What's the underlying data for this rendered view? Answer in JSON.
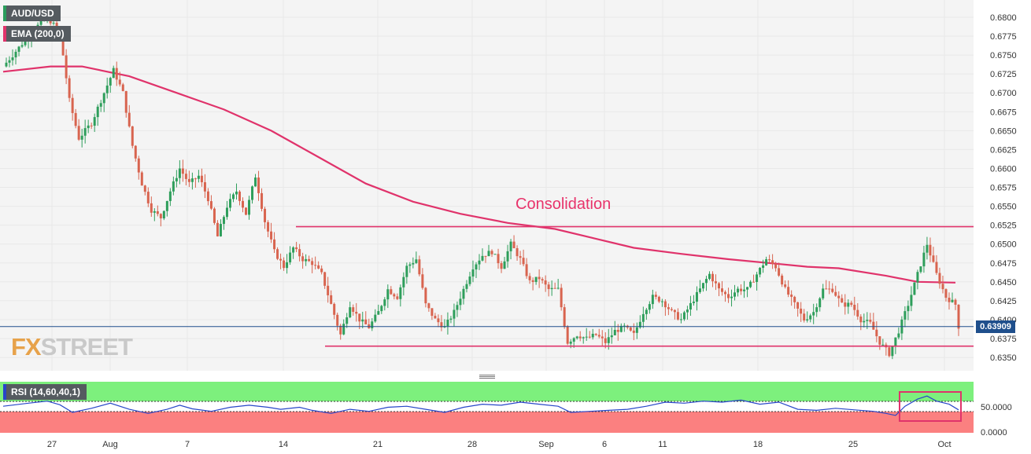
{
  "header": {
    "symbol": "AUD/USD",
    "indicator": "EMA (200,0)"
  },
  "watermark": {
    "x_letters": "FX",
    "rest": "STREET"
  },
  "annotation": {
    "text": "Consolidation",
    "color": "#e8336b"
  },
  "current_price": {
    "label": "0.63909",
    "value": 0.63909
  },
  "rsi_panel": {
    "label": "RSI (14,60,40,1)",
    "axis_ticks": [
      "50.0000",
      "0.0000"
    ],
    "upper_band": 60,
    "lower_band": 40,
    "overbought_color": "#7df07d",
    "oversold_color": "#fb8080"
  },
  "colors": {
    "up_candle": "#2e9e5b",
    "down_candle": "#d8644f",
    "ema": "#e0336b",
    "rsi_line": "#2746c9",
    "price_line": "#1f4f8c",
    "grid": "#e8e8e8"
  },
  "chart_data": [
    {
      "type": "candlestick",
      "title": "AUD/USD",
      "ylim": [
        0.6325,
        0.6825
      ],
      "y_ticks": [
        "0.6800",
        "0.6775",
        "0.6750",
        "0.6725",
        "0.6700",
        "0.6675",
        "0.6650",
        "0.6625",
        "0.6600",
        "0.6575",
        "0.6550",
        "0.6525",
        "0.6500",
        "0.6475",
        "0.6450",
        "0.6425",
        "0.6400",
        "0.6375",
        "0.6350"
      ],
      "x_ticks": [
        "27",
        "Aug",
        "7",
        "14",
        "21",
        "28",
        "Sep",
        "6",
        "11",
        "18",
        "25",
        "Oct"
      ],
      "close_path": [
        [
          0,
          0.6735
        ],
        [
          6,
          0.6765
        ],
        [
          10,
          0.6785
        ],
        [
          14,
          0.68
        ],
        [
          18,
          0.678
        ],
        [
          21,
          0.669
        ],
        [
          24,
          0.664
        ],
        [
          28,
          0.666
        ],
        [
          32,
          0.67
        ],
        [
          35,
          0.673
        ],
        [
          38,
          0.67
        ],
        [
          41,
          0.663
        ],
        [
          44,
          0.658
        ],
        [
          47,
          0.6545
        ],
        [
          50,
          0.6535
        ],
        [
          53,
          0.657
        ],
        [
          56,
          0.66
        ],
        [
          59,
          0.658
        ],
        [
          62,
          0.659
        ],
        [
          65,
          0.656
        ],
        [
          68,
          0.651
        ],
        [
          71,
          0.655
        ],
        [
          74,
          0.657
        ],
        [
          77,
          0.654
        ],
        [
          80,
          0.659
        ],
        [
          83,
          0.653
        ],
        [
          86,
          0.649
        ],
        [
          89,
          0.647
        ],
        [
          92,
          0.6495
        ],
        [
          95,
          0.648
        ],
        [
          98,
          0.6475
        ],
        [
          101,
          0.646
        ],
        [
          104,
          0.642
        ],
        [
          107,
          0.638
        ],
        [
          110,
          0.642
        ],
        [
          113,
          0.64
        ],
        [
          116,
          0.639
        ],
        [
          119,
          0.641
        ],
        [
          122,
          0.644
        ],
        [
          125,
          0.643
        ],
        [
          128,
          0.647
        ],
        [
          131,
          0.648
        ],
        [
          134,
          0.642
        ],
        [
          137,
          0.64
        ],
        [
          140,
          0.639
        ],
        [
          143,
          0.641
        ],
        [
          146,
          0.644
        ],
        [
          149,
          0.647
        ],
        [
          152,
          0.6485
        ],
        [
          155,
          0.649
        ],
        [
          158,
          0.647
        ],
        [
          161,
          0.65
        ],
        [
          164,
          0.648
        ],
        [
          167,
          0.645
        ],
        [
          170,
          0.6455
        ],
        [
          173,
          0.644
        ],
        [
          176,
          0.644
        ],
        [
          179,
          0.637
        ],
        [
          182,
          0.638
        ],
        [
          185,
          0.6375
        ],
        [
          188,
          0.638
        ],
        [
          191,
          0.637
        ],
        [
          194,
          0.6385
        ],
        [
          197,
          0.639
        ],
        [
          200,
          0.638
        ],
        [
          203,
          0.641
        ],
        [
          206,
          0.643
        ],
        [
          209,
          0.6425
        ],
        [
          212,
          0.641
        ],
        [
          215,
          0.64
        ],
        [
          218,
          0.642
        ],
        [
          221,
          0.644
        ],
        [
          224,
          0.646
        ],
        [
          227,
          0.644
        ],
        [
          230,
          0.643
        ],
        [
          233,
          0.644
        ],
        [
          236,
          0.644
        ],
        [
          239,
          0.646
        ],
        [
          242,
          0.648
        ],
        [
          245,
          0.647
        ],
        [
          248,
          0.644
        ],
        [
          251,
          0.642
        ],
        [
          254,
          0.64
        ],
        [
          257,
          0.641
        ],
        [
          260,
          0.644
        ],
        [
          263,
          0.644
        ],
        [
          266,
          0.642
        ],
        [
          269,
          0.642
        ],
        [
          272,
          0.64
        ],
        [
          275,
          0.6395
        ],
        [
          278,
          0.637
        ],
        [
          281,
          0.6355
        ],
        [
          284,
          0.6385
        ],
        [
          287,
          0.642
        ],
        [
          290,
          0.646
        ],
        [
          293,
          0.65
        ],
        [
          296,
          0.646
        ],
        [
          299,
          0.643
        ],
        [
          302,
          0.642
        ],
        [
          303,
          0.6391
        ]
      ]
    },
    {
      "type": "line",
      "title": "EMA (200,0)",
      "ylim": [
        0.6325,
        0.6825
      ],
      "points": [
        [
          0,
          0.6728
        ],
        [
          15,
          0.6735
        ],
        [
          25,
          0.6735
        ],
        [
          40,
          0.6722
        ],
        [
          55,
          0.67
        ],
        [
          70,
          0.6678
        ],
        [
          85,
          0.665
        ],
        [
          100,
          0.6615
        ],
        [
          115,
          0.658
        ],
        [
          130,
          0.6556
        ],
        [
          145,
          0.654
        ],
        [
          160,
          0.6528
        ],
        [
          175,
          0.652
        ],
        [
          185,
          0.651
        ],
        [
          200,
          0.6495
        ],
        [
          215,
          0.6487
        ],
        [
          230,
          0.648
        ],
        [
          245,
          0.6474
        ],
        [
          255,
          0.647
        ],
        [
          265,
          0.6468
        ],
        [
          280,
          0.6458
        ],
        [
          290,
          0.645
        ],
        [
          302,
          0.6449
        ]
      ],
      "horizontal_lines": [
        0.6523,
        0.6365
      ]
    },
    {
      "type": "line",
      "title": "RSI (14,60,40,1)",
      "ylim": [
        0,
        100
      ],
      "y_ticks": [
        "50.0000",
        "0.0000"
      ],
      "points": [
        [
          0,
          52
        ],
        [
          8,
          58
        ],
        [
          14,
          62
        ],
        [
          18,
          55
        ],
        [
          22,
          40
        ],
        [
          28,
          48
        ],
        [
          34,
          58
        ],
        [
          40,
          46
        ],
        [
          46,
          38
        ],
        [
          52,
          46
        ],
        [
          56,
          54
        ],
        [
          60,
          47
        ],
        [
          66,
          42
        ],
        [
          72,
          50
        ],
        [
          78,
          54
        ],
        [
          84,
          50
        ],
        [
          88,
          46
        ],
        [
          94,
          50
        ],
        [
          98,
          44
        ],
        [
          104,
          38
        ],
        [
          110,
          46
        ],
        [
          116,
          42
        ],
        [
          122,
          50
        ],
        [
          128,
          52
        ],
        [
          134,
          46
        ],
        [
          140,
          40
        ],
        [
          146,
          50
        ],
        [
          152,
          56
        ],
        [
          158,
          54
        ],
        [
          164,
          60
        ],
        [
          170,
          56
        ],
        [
          176,
          52
        ],
        [
          180,
          40
        ],
        [
          186,
          42
        ],
        [
          192,
          44
        ],
        [
          198,
          46
        ],
        [
          204,
          52
        ],
        [
          210,
          60
        ],
        [
          216,
          58
        ],
        [
          222,
          62
        ],
        [
          228,
          60
        ],
        [
          234,
          64
        ],
        [
          240,
          56
        ],
        [
          246,
          60
        ],
        [
          252,
          46
        ],
        [
          258,
          44
        ],
        [
          264,
          48
        ],
        [
          270,
          45
        ],
        [
          276,
          42
        ],
        [
          280,
          38
        ],
        [
          283,
          34
        ],
        [
          286,
          52
        ],
        [
          290,
          66
        ],
        [
          293,
          72
        ],
        [
          296,
          62
        ],
        [
          300,
          56
        ],
        [
          303,
          45
        ]
      ]
    }
  ]
}
